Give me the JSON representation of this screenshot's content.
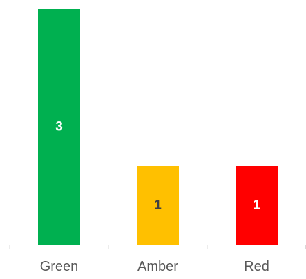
{
  "chart_data": {
    "type": "bar",
    "categories": [
      "Green",
      "Amber",
      "Red"
    ],
    "values": [
      3,
      1,
      1
    ],
    "data_labels": [
      "3",
      "1",
      "1"
    ],
    "bar_colors": [
      "#00B050",
      "#FFC000",
      "#FF0000"
    ],
    "label_colors": [
      "#FFFFFF",
      "#404040",
      "#FFFFFF"
    ],
    "axis_color": "#D9D9D9",
    "ylim": [
      0,
      3
    ],
    "gridlines": false,
    "legend": "none"
  }
}
